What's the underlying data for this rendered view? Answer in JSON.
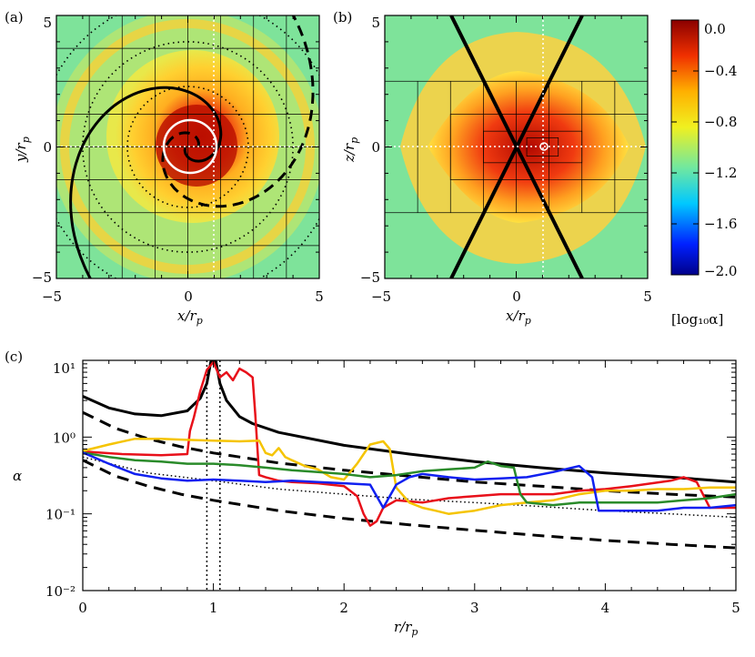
{
  "chart_data": [
    {
      "type": "heatmap",
      "panel_label": "(a)",
      "xlabel": "x/r",
      "xlabel_sub": "p",
      "ylabel": "y/r",
      "ylabel_sub": "p",
      "xlim": [
        -5,
        5
      ],
      "ylim": [
        -5,
        5
      ],
      "xticks": [
        -5,
        0,
        5
      ],
      "yticks": [
        -5,
        0,
        5
      ],
      "xtick_labels": [
        "−5",
        "0",
        "5"
      ],
      "ytick_labels": [
        "−5",
        "0",
        "5"
      ],
      "minor_xticks": [
        -4,
        -3,
        -2,
        -1,
        1,
        2,
        3,
        4
      ],
      "minor_yticks": [
        -4,
        -3,
        -2,
        -1,
        1,
        2,
        3,
        4
      ],
      "description_values": {
        "planet_position": [
          1,
          0
        ],
        "white_circle_radius": 1
      },
      "grid_x": [
        -2.6,
        -1.3,
        0,
        1.3,
        2.6
      ],
      "grid_y": [
        -2.6,
        -1.3,
        0,
        1.3,
        2.6
      ]
    },
    {
      "type": "heatmap",
      "panel_label": "(b)",
      "xlabel": "x/r",
      "xlabel_sub": "p",
      "ylabel": "z/r",
      "ylabel_sub": "p",
      "xlim": [
        -5,
        5
      ],
      "ylim": [
        -5,
        5
      ],
      "xticks": [
        -5,
        0,
        5
      ],
      "yticks": [
        -5,
        0,
        5
      ],
      "xtick_labels": [
        "−5",
        "0",
        "5"
      ],
      "ytick_labels": [
        "−5",
        "0",
        "5"
      ],
      "minor_xticks": [
        -4,
        -3,
        -2,
        -1,
        1,
        2,
        3,
        4
      ],
      "minor_yticks": [
        -4,
        -3,
        -2,
        -1,
        1,
        2,
        3,
        4
      ],
      "cone_lines": [
        [
          [
            -2.5,
            -5
          ],
          [
            2.5,
            5
          ]
        ],
        [
          [
            -2.5,
            5
          ],
          [
            2.5,
            -5
          ]
        ]
      ],
      "planet_position": [
        1,
        0
      ]
    },
    {
      "type": "colorbar",
      "label": "[log₁₀α]",
      "range": [
        -2.0,
        0.0
      ],
      "ticks": [
        0.0,
        -0.4,
        -0.8,
        -1.2,
        -1.6,
        -2.0
      ],
      "tick_labels": [
        "0.0",
        "−0.4",
        "−0.8",
        "−1.2",
        "−1.6",
        "−2.0"
      ]
    },
    {
      "type": "line",
      "panel_label": "(c)",
      "xlabel": "r/r",
      "xlabel_sub": "p",
      "ylabel": "α",
      "xlim": [
        0,
        5
      ],
      "ylim_log10": [
        -2,
        1
      ],
      "xticks": [
        0,
        1,
        2,
        3,
        4,
        5
      ],
      "xtick_labels": [
        "0",
        "1",
        "2",
        "3",
        "4",
        "5"
      ],
      "yticks_log10": [
        -2,
        -1,
        0,
        1
      ],
      "ytick_labels": [
        "10⁻²",
        "10⁻¹",
        "10⁰",
        "10¹"
      ],
      "vlines": [
        0.95,
        1.05
      ],
      "series": [
        {
          "name": "solid-black",
          "color": "#000000",
          "style": "solid",
          "width": 3,
          "x": [
            0,
            0.2,
            0.4,
            0.6,
            0.8,
            0.9,
            0.95,
            0.98,
            1.02,
            1.05,
            1.1,
            1.2,
            1.3,
            1.5,
            2.0,
            2.5,
            3.0,
            3.5,
            4.0,
            4.5,
            5.0
          ],
          "y": [
            3.4,
            2.4,
            2.0,
            1.9,
            2.2,
            3.2,
            5.0,
            9.5,
            9.5,
            5.0,
            3.0,
            1.85,
            1.5,
            1.15,
            0.78,
            0.6,
            0.48,
            0.4,
            0.34,
            0.3,
            0.26
          ]
        },
        {
          "name": "dashed-black-upper",
          "color": "#000000",
          "style": "dash",
          "width": 3,
          "x": [
            0,
            0.25,
            0.5,
            0.75,
            1.0,
            1.5,
            2.0,
            2.5,
            3.0,
            3.5,
            4.0,
            4.5,
            5.0
          ],
          "y": [
            2.1,
            1.3,
            0.95,
            0.75,
            0.62,
            0.46,
            0.37,
            0.31,
            0.26,
            0.23,
            0.2,
            0.18,
            0.165
          ]
        },
        {
          "name": "dashed-black-lower",
          "color": "#000000",
          "style": "dash",
          "width": 3,
          "x": [
            0,
            0.25,
            0.5,
            0.75,
            1.0,
            1.5,
            2.0,
            2.5,
            3.0,
            3.5,
            4.0,
            4.5,
            5.0
          ],
          "y": [
            0.5,
            0.31,
            0.23,
            0.18,
            0.15,
            0.11,
            0.087,
            0.072,
            0.061,
            0.052,
            0.045,
            0.04,
            0.036
          ]
        },
        {
          "name": "dotted-black",
          "color": "#000000",
          "style": "dot",
          "width": 1.5,
          "x": [
            0,
            0.5,
            1.0,
            1.5,
            2.0,
            2.5,
            3.0,
            3.5,
            4.0,
            4.5,
            5.0
          ],
          "y": [
            0.55,
            0.34,
            0.27,
            0.21,
            0.18,
            0.155,
            0.14,
            0.125,
            0.11,
            0.1,
            0.09
          ]
        },
        {
          "name": "red",
          "color": "#e8101a",
          "style": "solid",
          "width": 2.5,
          "x": [
            0,
            0.3,
            0.6,
            0.8,
            0.82,
            0.85,
            0.9,
            0.95,
            1.0,
            1.05,
            1.1,
            1.15,
            1.2,
            1.25,
            1.3,
            1.32,
            1.35,
            1.4,
            1.5,
            1.6,
            1.8,
            2.0,
            2.1,
            2.15,
            2.2,
            2.25,
            2.3,
            2.4,
            2.6,
            2.8,
            3.0,
            3.2,
            3.4,
            3.6,
            3.8,
            4.0,
            4.2,
            4.5,
            4.6,
            4.7,
            4.8,
            5.0
          ],
          "y": [
            0.65,
            0.6,
            0.58,
            0.6,
            1.2,
            1.8,
            4.0,
            7.5,
            9.5,
            6.0,
            7.0,
            5.5,
            7.8,
            7.0,
            6.0,
            2.0,
            0.32,
            0.3,
            0.27,
            0.26,
            0.25,
            0.23,
            0.17,
            0.1,
            0.07,
            0.08,
            0.12,
            0.15,
            0.14,
            0.16,
            0.17,
            0.18,
            0.18,
            0.18,
            0.2,
            0.21,
            0.23,
            0.27,
            0.3,
            0.26,
            0.12,
            0.12
          ]
        },
        {
          "name": "yellow",
          "color": "#f5c400",
          "style": "solid",
          "width": 2.5,
          "x": [
            0,
            0.2,
            0.4,
            0.6,
            0.8,
            1.0,
            1.2,
            1.35,
            1.4,
            1.45,
            1.5,
            1.55,
            1.6,
            1.7,
            1.8,
            1.9,
            2.0,
            2.1,
            2.2,
            2.3,
            2.35,
            2.4,
            2.5,
            2.6,
            2.7,
            2.8,
            3.0,
            3.2,
            3.4,
            3.6,
            3.8,
            4.0,
            4.2,
            4.4,
            4.6,
            4.8,
            5.0
          ],
          "y": [
            0.66,
            0.8,
            0.95,
            0.95,
            0.92,
            0.9,
            0.88,
            0.9,
            0.62,
            0.58,
            0.72,
            0.55,
            0.5,
            0.42,
            0.38,
            0.3,
            0.28,
            0.45,
            0.8,
            0.88,
            0.7,
            0.22,
            0.14,
            0.12,
            0.11,
            0.1,
            0.11,
            0.13,
            0.14,
            0.15,
            0.18,
            0.2,
            0.2,
            0.21,
            0.21,
            0.22,
            0.22
          ]
        },
        {
          "name": "green",
          "color": "#2a8b2a",
          "style": "solid",
          "width": 2.5,
          "x": [
            0,
            0.2,
            0.4,
            0.6,
            0.8,
            1.0,
            1.2,
            1.4,
            1.6,
            1.8,
            2.0,
            2.2,
            2.4,
            2.6,
            2.8,
            3.0,
            3.1,
            3.2,
            3.3,
            3.35,
            3.4,
            3.6,
            3.8,
            4.0,
            4.2,
            4.4,
            4.6,
            4.8,
            5.0
          ],
          "y": [
            0.63,
            0.55,
            0.5,
            0.48,
            0.45,
            0.45,
            0.43,
            0.4,
            0.37,
            0.35,
            0.33,
            0.3,
            0.32,
            0.36,
            0.38,
            0.4,
            0.48,
            0.42,
            0.4,
            0.18,
            0.14,
            0.13,
            0.14,
            0.14,
            0.14,
            0.14,
            0.15,
            0.16,
            0.18
          ]
        },
        {
          "name": "blue",
          "color": "#1020f0",
          "style": "solid",
          "width": 2.5,
          "x": [
            0,
            0.2,
            0.4,
            0.6,
            0.8,
            1.0,
            1.2,
            1.4,
            1.6,
            1.8,
            2.0,
            2.2,
            2.3,
            2.4,
            2.5,
            2.6,
            2.8,
            3.0,
            3.2,
            3.4,
            3.6,
            3.8,
            3.9,
            3.95,
            4.0,
            4.2,
            4.4,
            4.6,
            4.8,
            5.0
          ],
          "y": [
            0.63,
            0.45,
            0.33,
            0.29,
            0.27,
            0.28,
            0.27,
            0.26,
            0.27,
            0.26,
            0.25,
            0.24,
            0.12,
            0.24,
            0.3,
            0.33,
            0.3,
            0.28,
            0.29,
            0.3,
            0.35,
            0.42,
            0.3,
            0.11,
            0.11,
            0.11,
            0.11,
            0.12,
            0.12,
            0.13
          ]
        }
      ]
    }
  ]
}
